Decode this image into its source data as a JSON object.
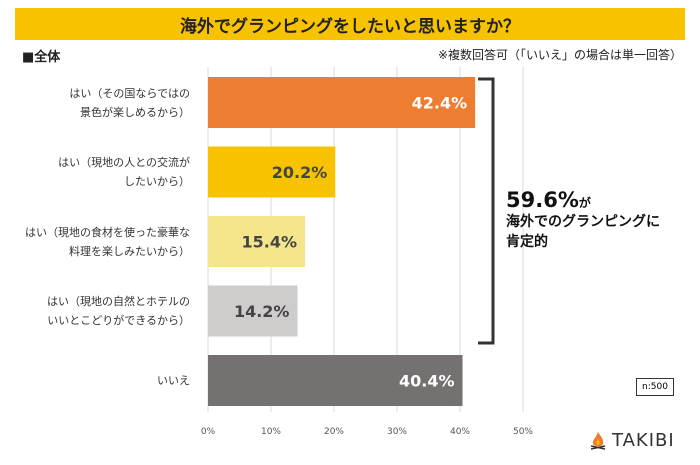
{
  "title": "海外でグランピングをしたいと思いますか？",
  "segment_label": "■全体",
  "note": "※複数回答可（「いいえ」の場合は単一回答）",
  "annotation": {
    "value": "59.6%",
    "suffix": "が",
    "line1": "海外でのグランピングに",
    "line2": "肯定的"
  },
  "sample": "n:500",
  "logo": "TAKIBI",
  "chart_data": {
    "type": "bar",
    "orientation": "horizontal",
    "categories": [
      "はい（その国ならではの\n景色が楽しめるから）",
      "はい（現地の人との交流が\nしたいから）",
      "はい（現地の食材を使った豪華な\n料理を楽しみたいから）",
      "はい（現地の自然とホテルの\nいいとこどりができるから）",
      "いいえ"
    ],
    "values": [
      42.4,
      20.2,
      15.4,
      14.2,
      40.4
    ],
    "value_labels": [
      "42.4%",
      "20.2%",
      "15.4%",
      "14.2%",
      "40.4%"
    ],
    "colors": [
      "#ed7d31",
      "#f7c200",
      "#f5e68c",
      "#cfcccc",
      "#767171"
    ],
    "label_colors": [
      "#ffffff",
      "#444444",
      "#444444",
      "#444444",
      "#ffffff"
    ],
    "xlim": [
      0,
      50
    ],
    "xticks": [
      "0%",
      "10%",
      "20%",
      "30%",
      "40%",
      "50%"
    ],
    "grid": true
  }
}
